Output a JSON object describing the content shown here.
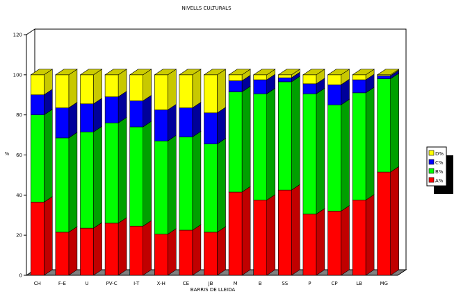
{
  "chart_data": {
    "type": "bar",
    "stacked": true,
    "three_d": true,
    "title": "NIVELLS CULTURALS",
    "xlabel": "BARRIS DE LLEIDA",
    "ylabel": "%",
    "ylim": [
      0,
      120
    ],
    "yticks": [
      0,
      20,
      40,
      60,
      80,
      100,
      120
    ],
    "categories": [
      "CH",
      "F-E",
      "U",
      "PV-C",
      "I-T",
      "X-H",
      "CE",
      "JB",
      "M",
      "B",
      "SS",
      "P",
      "CP",
      "LB",
      "MG"
    ],
    "series": [
      {
        "name": "A%",
        "color": "#ff0000",
        "side": "#c00000",
        "values": [
          36.5,
          21.5,
          23.5,
          26,
          24.5,
          20.5,
          22.5,
          21.5,
          41.5,
          37.5,
          42.5,
          30.5,
          32,
          37.5,
          51.5
        ]
      },
      {
        "name": "B%",
        "color": "#00ff00",
        "side": "#00a000",
        "values": [
          43.5,
          47,
          48,
          50,
          49.5,
          46.5,
          46.5,
          44,
          50,
          53,
          54,
          60,
          53,
          53.5,
          46.5
        ]
      },
      {
        "name": "C%",
        "color": "#0000ff",
        "side": "#00009a",
        "values": [
          10,
          15,
          14,
          13,
          13,
          15.5,
          14.5,
          15.5,
          5.5,
          7,
          2,
          5,
          10,
          6.5,
          1.5
        ]
      },
      {
        "name": "D%",
        "color": "#ffff00",
        "side": "#c8c800",
        "values": [
          10,
          16.5,
          14.5,
          11,
          13,
          17.5,
          16.5,
          19,
          3,
          2.5,
          1.5,
          4.5,
          5,
          2.5,
          0.5
        ]
      }
    ],
    "legend_position": "right",
    "grid": false
  }
}
